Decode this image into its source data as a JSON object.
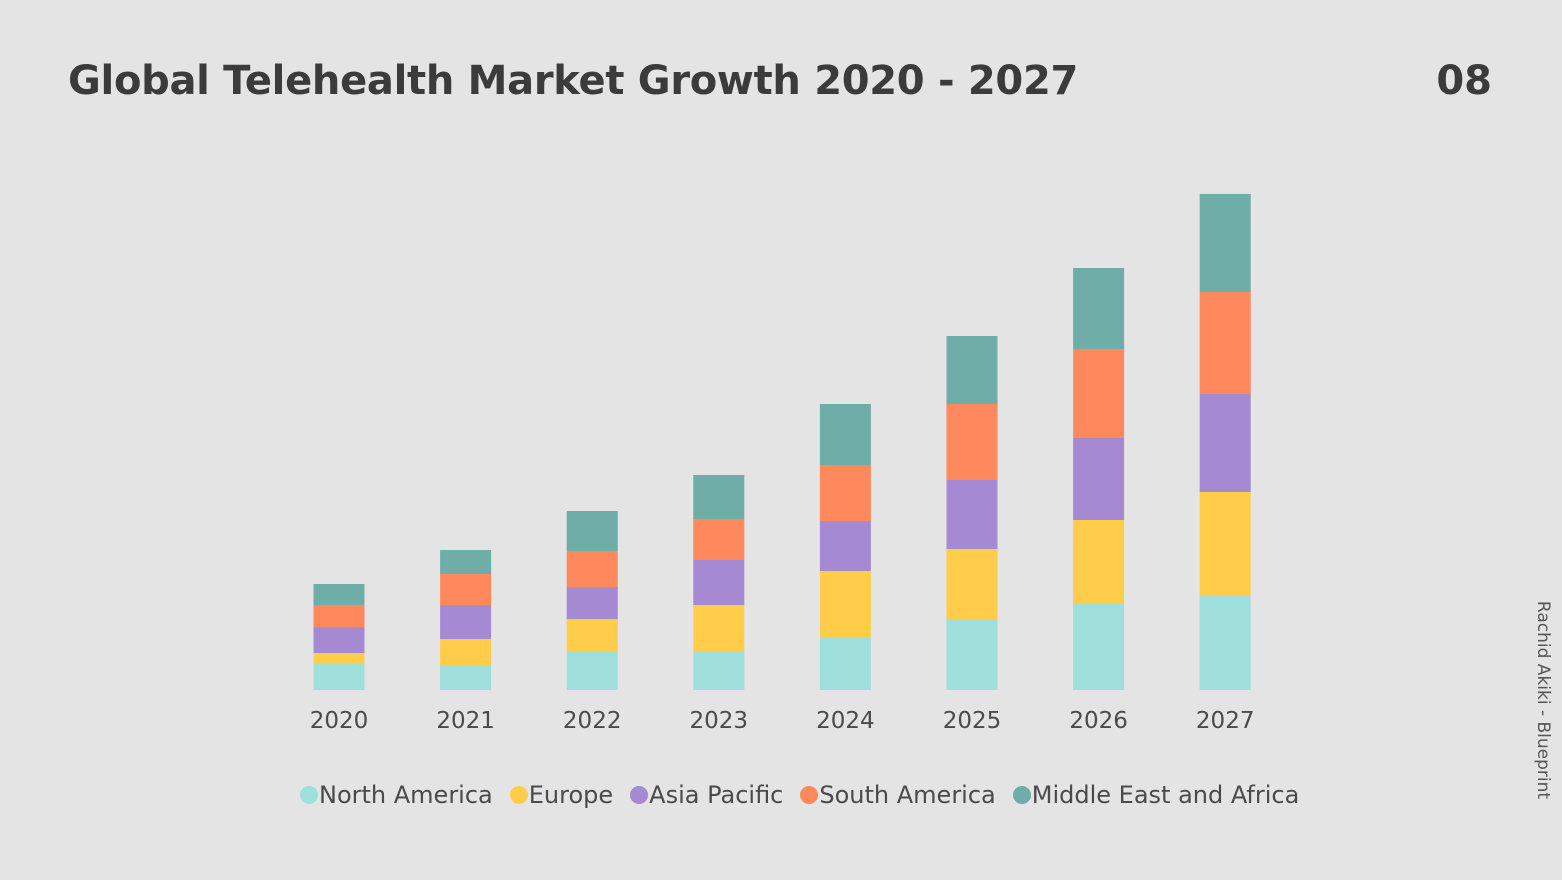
{
  "title": "Global Telehealth Market Growth 2020 - 2027",
  "page_number": "08",
  "credit": "Rachid Akiki - Blueprint",
  "chart_data": {
    "type": "bar",
    "stacked": true,
    "title": "Global Telehealth Market Growth 2020 - 2027",
    "categories": [
      "2020",
      "2021",
      "2022",
      "2023",
      "2024",
      "2025",
      "2026",
      "2027"
    ],
    "series": [
      {
        "name": "North America",
        "color": "#a0e0dc",
        "values": [
          26,
          25,
          38,
          39,
          52,
          71,
          86,
          95
        ]
      },
      {
        "name": "Europe",
        "color": "#ffcd4a",
        "values": [
          11,
          26,
          33,
          46,
          67,
          70,
          84,
          103
        ]
      },
      {
        "name": "Asia Pacific",
        "color": "#a689d3",
        "values": [
          26,
          34,
          32,
          45,
          50,
          69,
          82,
          98
        ]
      },
      {
        "name": "South America",
        "color": "#ff895c",
        "values": [
          22,
          31,
          36,
          41,
          56,
          76,
          89,
          102
        ]
      },
      {
        "name": "Middle East and Africa",
        "color": "#6fada9",
        "values": [
          21,
          24,
          40,
          44,
          61,
          68,
          81,
          98
        ]
      }
    ],
    "ylim": [
      0,
      500
    ],
    "grid": false,
    "legend_position": "bottom"
  }
}
